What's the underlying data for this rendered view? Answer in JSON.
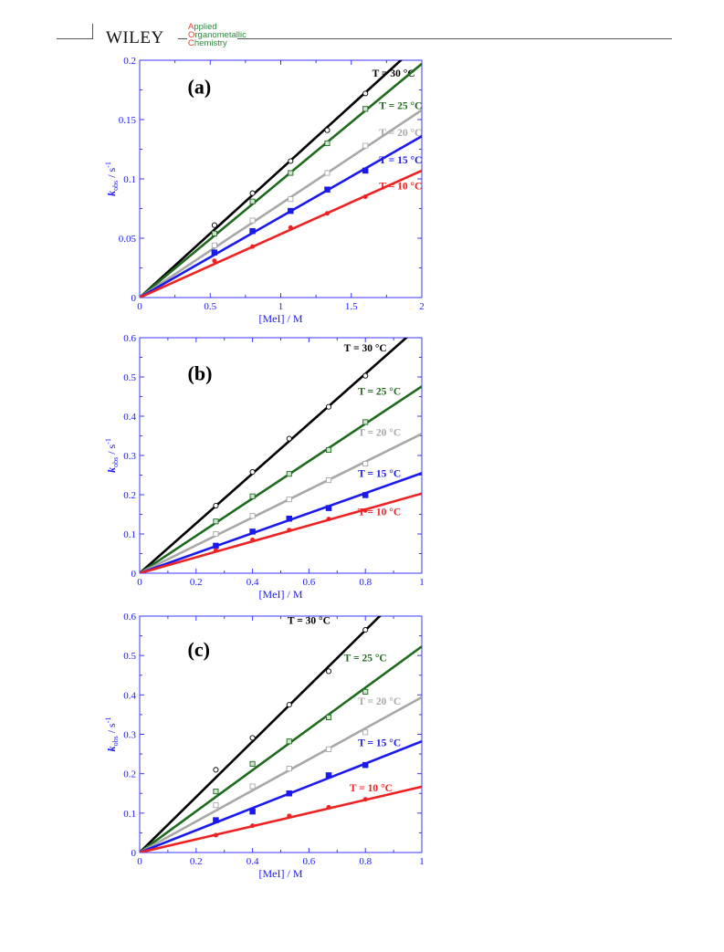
{
  "header": {
    "publisher": "WILEY",
    "journal_lines": [
      {
        "cap": "A",
        "rest": "pplied"
      },
      {
        "cap": "O",
        "rest": "rganometallic"
      },
      {
        "cap": "C",
        "rest": "hemistry"
      }
    ]
  },
  "chart_data": [
    {
      "type": "line",
      "panel_label": "(a)",
      "xlabel": "[MeI] / M",
      "ylabel_main": "k",
      "ylabel_sub": "obs",
      "ylabel_unit": " / s",
      "ylabel_sup": "-1",
      "xlim": [
        0,
        2
      ],
      "ylim": [
        0,
        0.2
      ],
      "xticks": [
        0,
        0.5,
        1,
        1.5,
        2
      ],
      "xtick_labels": [
        "0",
        "0.5",
        "1",
        "1.5",
        "2"
      ],
      "yticks": [
        0,
        0.05,
        0.1,
        0.15,
        0.2
      ],
      "ytick_labels": [
        "0",
        "0.05",
        "0.1",
        "0.15",
        "0.2"
      ],
      "series": [
        {
          "name": "T = 30 °C",
          "color": "#000000",
          "marker": "open-circle",
          "slope": 0.108,
          "x": [
            0.53,
            0.8,
            1.07,
            1.33,
            1.6
          ],
          "y": [
            0.061,
            0.088,
            0.115,
            0.141,
            0.172
          ]
        },
        {
          "name": "T = 25 °C",
          "color": "#1e6b1e",
          "marker": "dotted-square",
          "slope": 0.0985,
          "x": [
            0.53,
            0.8,
            1.07,
            1.33,
            1.6
          ],
          "y": [
            0.054,
            0.081,
            0.105,
            0.13,
            0.159
          ]
        },
        {
          "name": "T = 20 °C",
          "color": "#a8a8a8",
          "marker": "open-square",
          "slope": 0.079,
          "x": [
            0.53,
            0.8,
            1.07,
            1.33,
            1.6
          ],
          "y": [
            0.044,
            0.065,
            0.083,
            0.105,
            0.128
          ]
        },
        {
          "name": "T = 15 °C",
          "color": "#1a1aee",
          "marker": "half-square",
          "slope": 0.068,
          "x": [
            0.53,
            0.8,
            1.07,
            1.33,
            1.6
          ],
          "y": [
            0.038,
            0.056,
            0.073,
            0.091,
            0.107
          ]
        },
        {
          "name": "T = 10 °C",
          "color": "#ee2222",
          "marker": "dot",
          "slope": 0.0535,
          "x": [
            0.53,
            0.8,
            1.07,
            1.33,
            1.6
          ],
          "y": [
            0.031,
            0.043,
            0.059,
            0.071,
            0.085
          ]
        }
      ]
    },
    {
      "type": "line",
      "panel_label": "(b)",
      "xlabel": "[MeI] / M",
      "ylabel_main": "k",
      "ylabel_sub": "obs",
      "ylabel_unit": " / s",
      "ylabel_sup": "-1",
      "xlim": [
        0,
        1
      ],
      "ylim": [
        0,
        0.6
      ],
      "xticks": [
        0,
        0.2,
        0.4,
        0.6,
        0.8,
        1
      ],
      "xtick_labels": [
        "0",
        "0.2",
        "0.4",
        "0.6",
        "0.8",
        "1"
      ],
      "yticks": [
        0,
        0.1,
        0.2,
        0.3,
        0.4,
        0.5,
        0.6
      ],
      "ytick_labels": [
        "0",
        "0.1",
        "0.2",
        "0.3",
        "0.4",
        "0.5",
        "0.6"
      ],
      "series": [
        {
          "name": "T = 30 °C",
          "color": "#000000",
          "marker": "open-circle",
          "slope": 0.635,
          "x": [
            0.27,
            0.4,
            0.53,
            0.67,
            0.8
          ],
          "y": [
            0.172,
            0.258,
            0.343,
            0.424,
            0.503
          ]
        },
        {
          "name": "T = 25 °C",
          "color": "#1e6b1e",
          "marker": "dotted-square",
          "slope": 0.476,
          "x": [
            0.27,
            0.4,
            0.53,
            0.67,
            0.8
          ],
          "y": [
            0.132,
            0.196,
            0.253,
            0.314,
            0.385
          ]
        },
        {
          "name": "T = 20 °C",
          "color": "#a8a8a8",
          "marker": "open-square",
          "slope": 0.355,
          "x": [
            0.27,
            0.4,
            0.53,
            0.67,
            0.8
          ],
          "y": [
            0.1,
            0.146,
            0.188,
            0.237,
            0.279
          ]
        },
        {
          "name": "T = 15 °C",
          "color": "#1a1aee",
          "marker": "half-square",
          "slope": 0.255,
          "x": [
            0.27,
            0.4,
            0.53,
            0.67,
            0.8
          ],
          "y": [
            0.07,
            0.106,
            0.139,
            0.166,
            0.199
          ]
        },
        {
          "name": "T = 10 °C",
          "color": "#ee2222",
          "marker": "dot",
          "slope": 0.203,
          "x": [
            0.27,
            0.4,
            0.53,
            0.67,
            0.8
          ],
          "y": [
            0.058,
            0.085,
            0.11,
            0.138,
            0.16
          ]
        }
      ]
    },
    {
      "type": "line",
      "panel_label": "(c)",
      "xlabel": "[MeI] / M",
      "ylabel_main": "k",
      "ylabel_sub": "obs",
      "ylabel_unit": " / s",
      "ylabel_sup": "-1",
      "xlim": [
        0,
        1
      ],
      "ylim": [
        0,
        0.6
      ],
      "xticks": [
        0,
        0.2,
        0.4,
        0.6,
        0.8,
        1
      ],
      "xtick_labels": [
        "0",
        "0.2",
        "0.4",
        "0.6",
        "0.8",
        "1"
      ],
      "yticks": [
        0,
        0.1,
        0.2,
        0.3,
        0.4,
        0.5,
        0.6
      ],
      "ytick_labels": [
        "0",
        "0.1",
        "0.2",
        "0.3",
        "0.4",
        "0.5",
        "0.6"
      ],
      "series": [
        {
          "name": "T = 30 °C",
          "color": "#000000",
          "marker": "open-circle",
          "slope": 0.705,
          "x": [
            0.27,
            0.4,
            0.53,
            0.67,
            0.8
          ],
          "y": [
            0.21,
            0.291,
            0.375,
            0.46,
            0.565
          ]
        },
        {
          "name": "T = 25 °C",
          "color": "#1e6b1e",
          "marker": "dotted-square",
          "slope": 0.523,
          "x": [
            0.27,
            0.4,
            0.53,
            0.67,
            0.8
          ],
          "y": [
            0.155,
            0.225,
            0.282,
            0.343,
            0.408
          ]
        },
        {
          "name": "T = 20 °C",
          "color": "#a8a8a8",
          "marker": "open-square",
          "slope": 0.394,
          "x": [
            0.27,
            0.4,
            0.53,
            0.67,
            0.8
          ],
          "y": [
            0.12,
            0.168,
            0.213,
            0.262,
            0.305
          ]
        },
        {
          "name": "T = 15 °C",
          "color": "#1a1aee",
          "marker": "half-square",
          "slope": 0.282,
          "x": [
            0.27,
            0.4,
            0.53,
            0.67,
            0.8
          ],
          "y": [
            0.082,
            0.104,
            0.15,
            0.196,
            0.222
          ]
        },
        {
          "name": "T = 10 °C",
          "color": "#ee2222",
          "marker": "dot",
          "slope": 0.167,
          "x": [
            0.27,
            0.4,
            0.53,
            0.67,
            0.8
          ],
          "y": [
            0.044,
            0.068,
            0.093,
            0.115,
            0.135
          ]
        }
      ]
    }
  ]
}
